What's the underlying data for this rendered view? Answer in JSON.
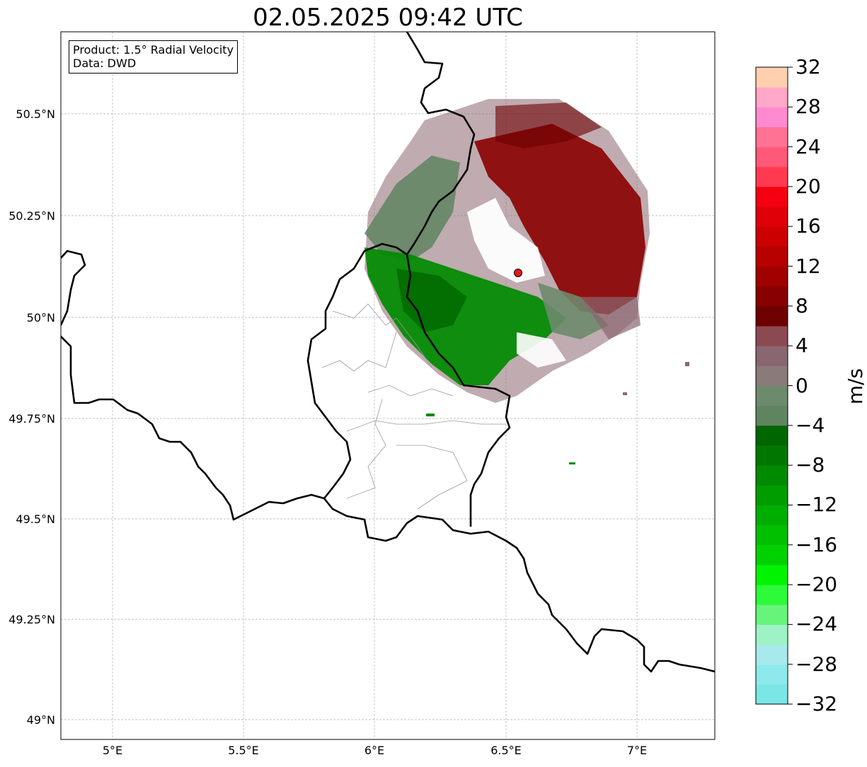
{
  "title": "02.05.2025 09:42 UTC",
  "info": {
    "product": "Product: 1.5° Radial Velocity",
    "data": "Data: DWD"
  },
  "axes": {
    "lon_ticks": [
      "5°E",
      "5.5°E",
      "6°E",
      "6.5°E",
      "7°E"
    ],
    "lat_ticks": [
      "50.5°N",
      "50.25°N",
      "50°N",
      "49.75°N",
      "49.5°N",
      "49.25°N",
      "49°N"
    ],
    "lon_range": [
      4.8,
      7.3
    ],
    "lat_range": [
      48.95,
      50.7
    ],
    "grid": true
  },
  "radar_site": {
    "lon": 6.55,
    "lat": 50.11,
    "color": "#e11b1b"
  },
  "colorbar": {
    "label": "m/s",
    "min": -32,
    "max": 32,
    "tick_labels": [
      "32",
      "28",
      "24",
      "20",
      "16",
      "12",
      "8",
      "4",
      "0",
      "−4",
      "−8",
      "−12",
      "−16",
      "−20",
      "−24",
      "−28",
      "−32"
    ],
    "colors": [
      "#7ae6e6",
      "#8ee9ec",
      "#a8eaec",
      "#9ef2c6",
      "#66f57a",
      "#2dfb3a",
      "#00f300",
      "#00d200",
      "#00c000",
      "#00ae00",
      "#009c00",
      "#008a00",
      "#007800",
      "#006600",
      "#5f8460",
      "#6d8a6d",
      "#8a7a7a",
      "#8a6670",
      "#8b4a52",
      "#6e0000",
      "#880000",
      "#a00000",
      "#b80000",
      "#cc0000",
      "#e00008",
      "#f40010",
      "#ff3a50",
      "#ff5878",
      "#ff7294",
      "#ff8ad0",
      "#ffa8c8",
      "#ffd0b0"
    ]
  }
}
